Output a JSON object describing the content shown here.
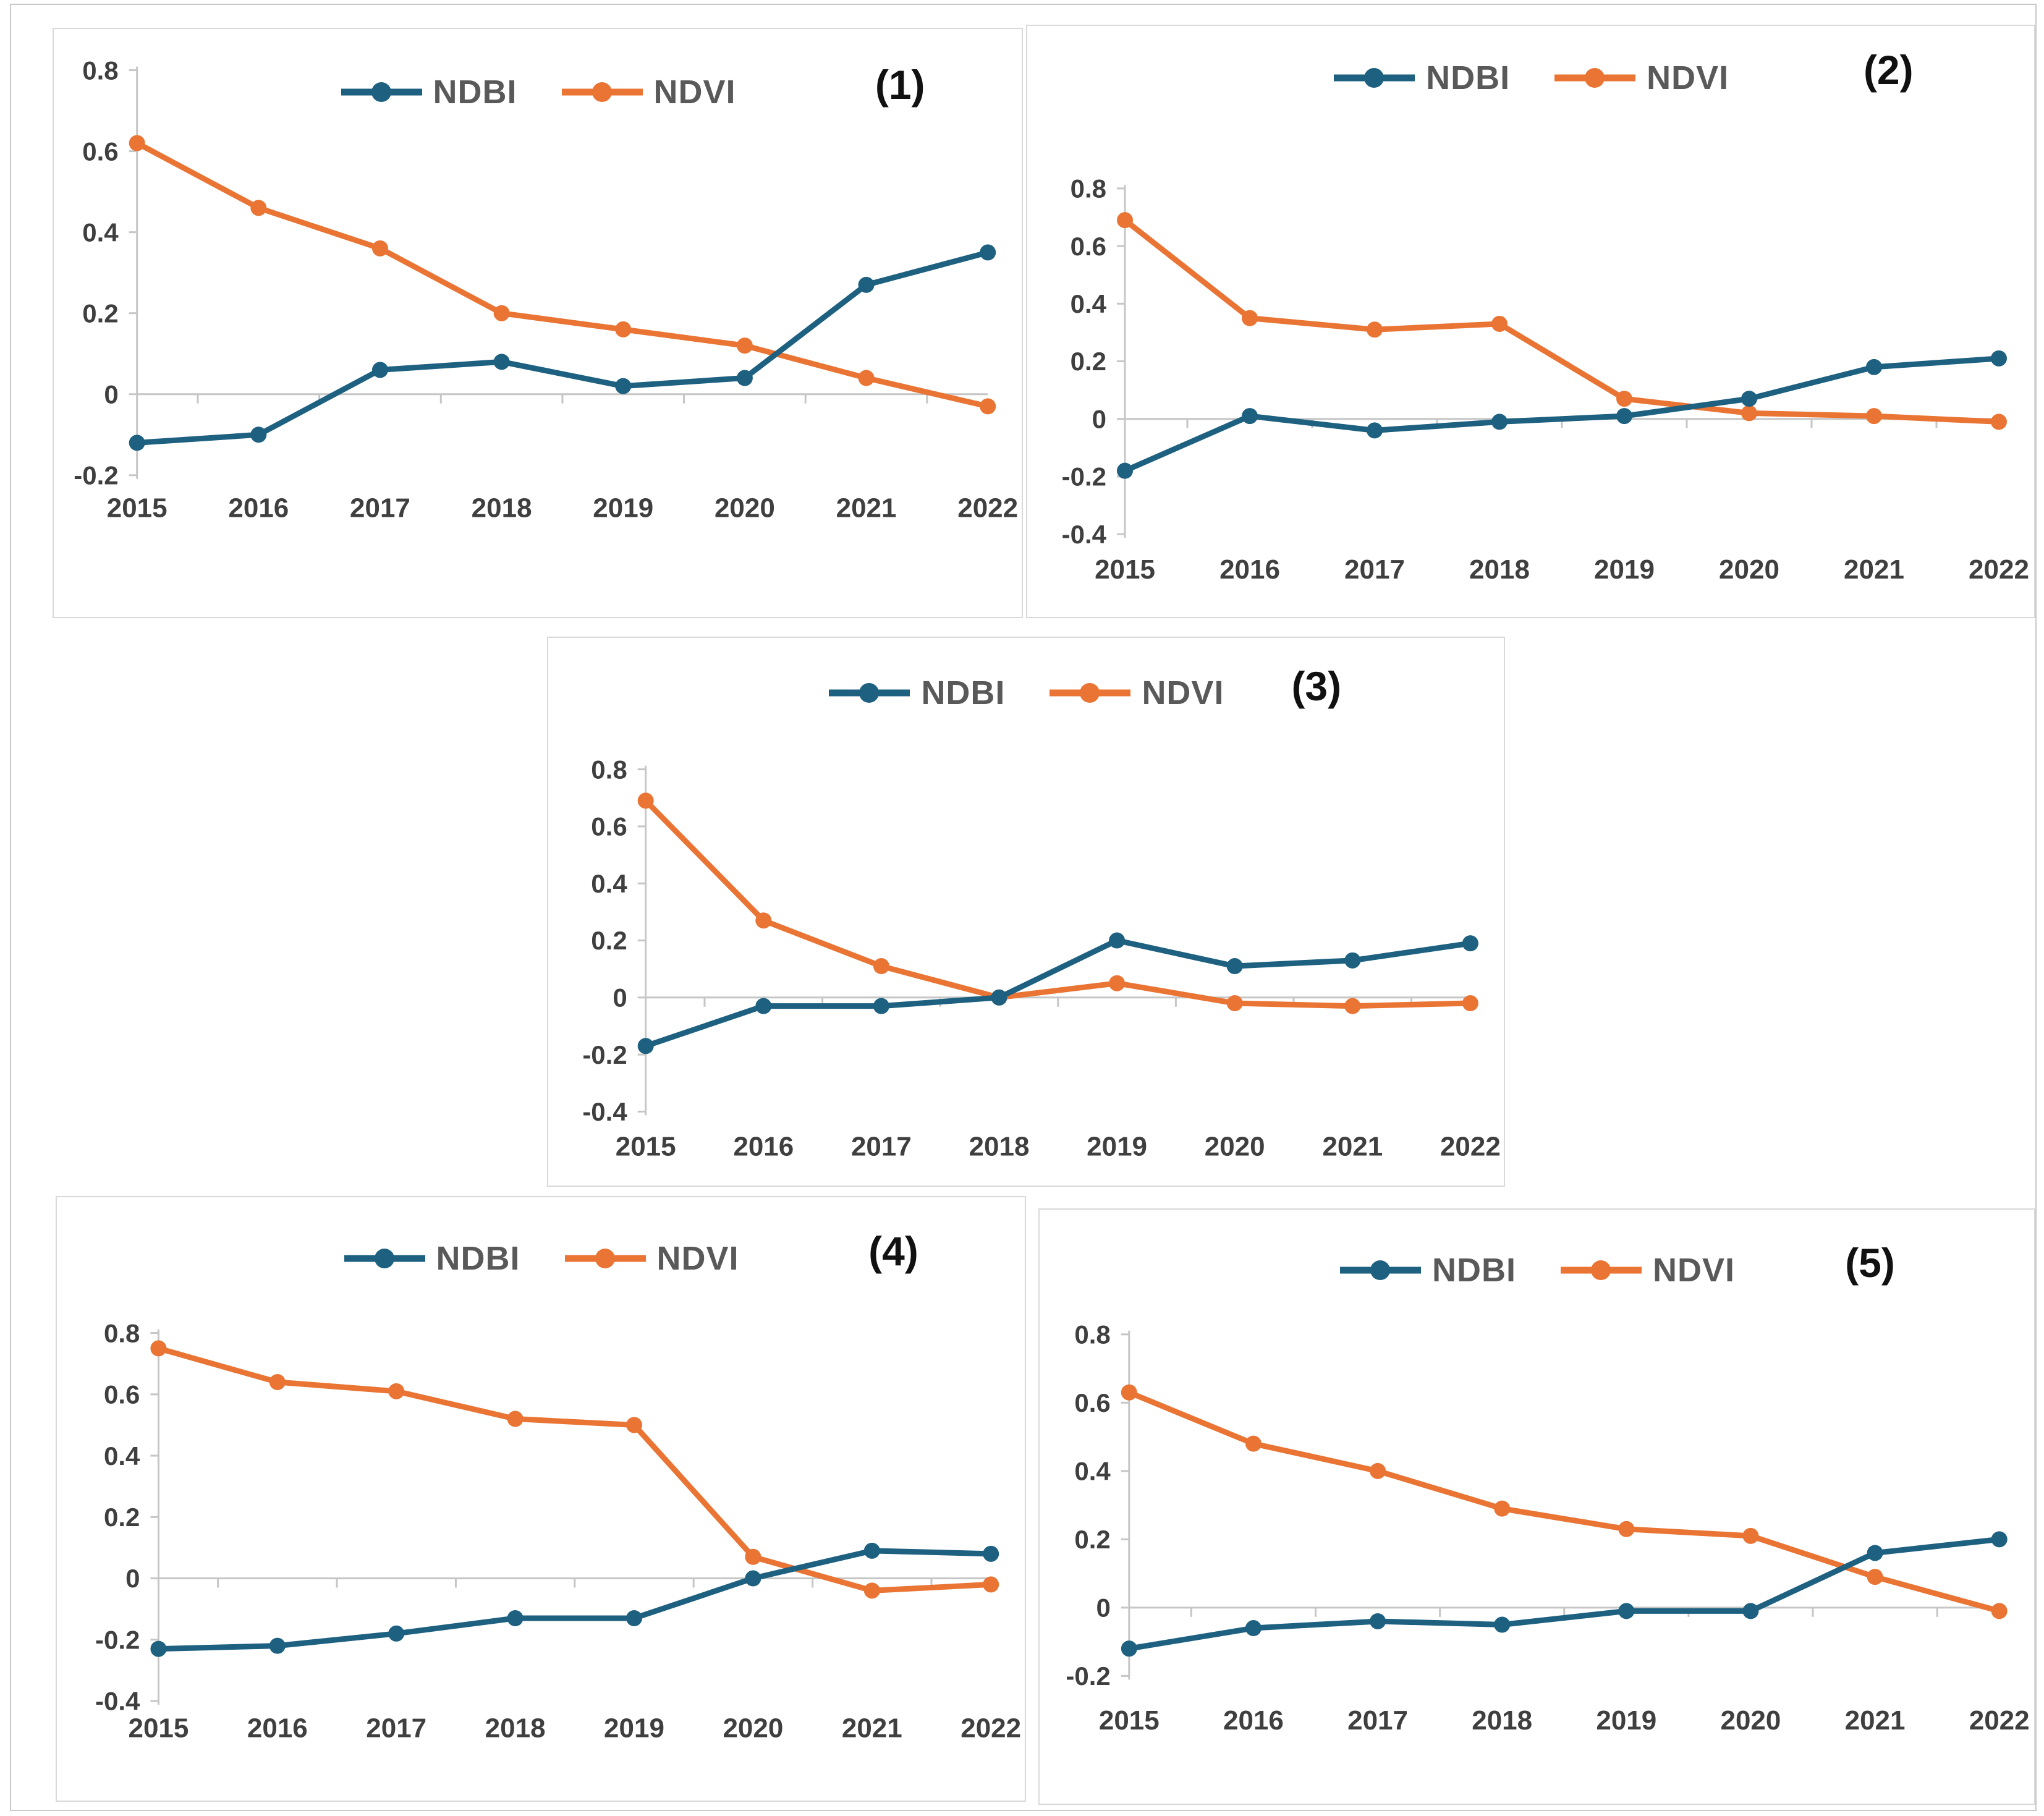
{
  "theme": {
    "background": "#ffffff",
    "panel_border": "#d9d9d9",
    "outer_frame": "#c9c9c9",
    "axis_line": "#c6c6c6",
    "tick_text": "#3f3f3f",
    "legend_text": "#595959",
    "panel_number_text": "#111111",
    "ndbi_color": "#1d6080",
    "ndvi_color": "#e97433"
  },
  "legend": {
    "items": [
      {
        "name": "NDBI",
        "color": "#1d6080"
      },
      {
        "name": "NDVI",
        "color": "#e97433"
      }
    ]
  },
  "chart_data": [
    {
      "panel_label": "(1)",
      "type": "line",
      "legend_position": "top-center",
      "grid": "zero-line-only",
      "categories": [
        "2015",
        "2016",
        "2017",
        "2018",
        "2019",
        "2020",
        "2021",
        "2022"
      ],
      "series": [
        {
          "name": "NDBI",
          "color": "#1d6080",
          "values": [
            -0.12,
            -0.1,
            0.06,
            0.08,
            0.02,
            0.04,
            0.27,
            0.35
          ]
        },
        {
          "name": "NDVI",
          "color": "#e97433",
          "values": [
            0.62,
            0.46,
            0.36,
            0.2,
            0.16,
            0.12,
            0.04,
            -0.03
          ]
        }
      ],
      "ylim": [
        -0.2,
        0.8
      ],
      "yticks": [
        0.8,
        0.6,
        0.4,
        0.2,
        0,
        -0.2
      ]
    },
    {
      "panel_label": "(2)",
      "type": "line",
      "legend_position": "top-center",
      "grid": "zero-line-only",
      "categories": [
        "2015",
        "2016",
        "2017",
        "2018",
        "2019",
        "2020",
        "2021",
        "2022"
      ],
      "series": [
        {
          "name": "NDBI",
          "color": "#1d6080",
          "values": [
            -0.18,
            0.01,
            -0.04,
            -0.01,
            0.01,
            0.07,
            0.18,
            0.21
          ]
        },
        {
          "name": "NDVI",
          "color": "#e97433",
          "values": [
            0.69,
            0.35,
            0.31,
            0.33,
            0.07,
            0.02,
            0.01,
            -0.01
          ]
        }
      ],
      "ylim": [
        -0.4,
        0.8
      ],
      "yticks": [
        0.8,
        0.6,
        0.4,
        0.2,
        0,
        -0.2,
        -0.4
      ]
    },
    {
      "panel_label": "(3)",
      "type": "line",
      "legend_position": "top-center",
      "grid": "zero-line-only",
      "categories": [
        "2015",
        "2016",
        "2017",
        "2018",
        "2019",
        "2020",
        "2021",
        "2022"
      ],
      "series": [
        {
          "name": "NDBI",
          "color": "#1d6080",
          "values": [
            -0.17,
            -0.03,
            -0.03,
            0.0,
            0.2,
            0.11,
            0.13,
            0.19
          ]
        },
        {
          "name": "NDVI",
          "color": "#e97433",
          "values": [
            0.69,
            0.27,
            0.11,
            0.0,
            0.05,
            -0.02,
            -0.03,
            -0.02
          ]
        }
      ],
      "ylim": [
        -0.4,
        0.8
      ],
      "yticks": [
        0.8,
        0.6,
        0.4,
        0.2,
        0,
        -0.2,
        -0.4
      ]
    },
    {
      "panel_label": "(4)",
      "type": "line",
      "legend_position": "top-center",
      "grid": "zero-line-only",
      "categories": [
        "2015",
        "2016",
        "2017",
        "2018",
        "2019",
        "2020",
        "2021",
        "2022"
      ],
      "series": [
        {
          "name": "NDBI",
          "color": "#1d6080",
          "values": [
            -0.23,
            -0.22,
            -0.18,
            -0.13,
            -0.13,
            0.0,
            0.09,
            0.08
          ]
        },
        {
          "name": "NDVI",
          "color": "#e97433",
          "values": [
            0.75,
            0.64,
            0.61,
            0.52,
            0.5,
            0.07,
            -0.04,
            -0.02
          ]
        }
      ],
      "ylim": [
        -0.4,
        0.8
      ],
      "yticks": [
        0.8,
        0.6,
        0.4,
        0.2,
        0,
        -0.2,
        -0.4
      ]
    },
    {
      "panel_label": "(5)",
      "type": "line",
      "legend_position": "top-center",
      "grid": "zero-line-only",
      "categories": [
        "2015",
        "2016",
        "2017",
        "2018",
        "2019",
        "2020",
        "2021",
        "2022"
      ],
      "series": [
        {
          "name": "NDBI",
          "color": "#1d6080",
          "values": [
            -0.12,
            -0.06,
            -0.04,
            -0.05,
            -0.01,
            -0.01,
            0.16,
            0.2
          ]
        },
        {
          "name": "NDVI",
          "color": "#e97433",
          "values": [
            0.63,
            0.48,
            0.4,
            0.29,
            0.23,
            0.21,
            0.09,
            -0.01
          ]
        }
      ],
      "ylim": [
        -0.2,
        0.8
      ],
      "yticks": [
        0.8,
        0.6,
        0.4,
        0.2,
        0,
        -0.2
      ]
    }
  ]
}
